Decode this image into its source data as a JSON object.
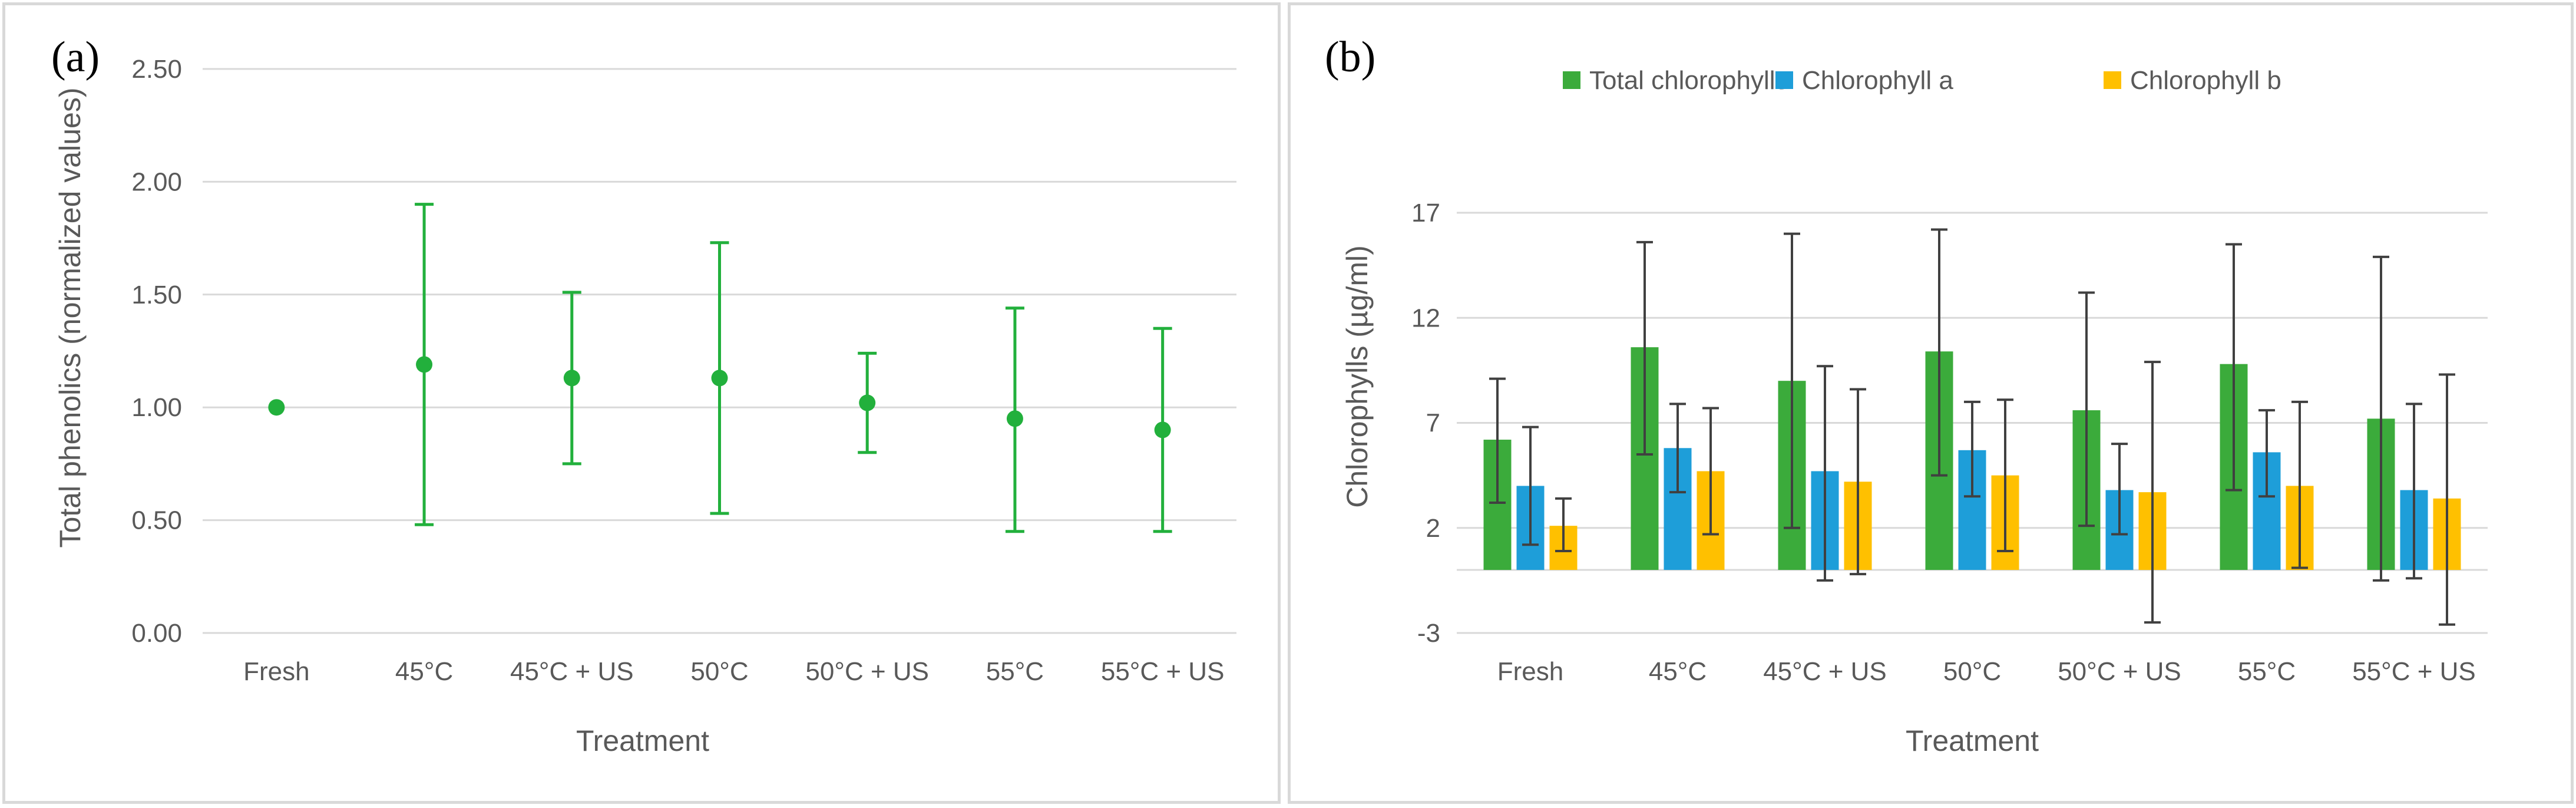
{
  "chart_data": [
    {
      "type": "scatter",
      "panel_label": "(a)",
      "title": "",
      "xlabel": "Treatment",
      "ylabel": "Total phenolics (normalized values)",
      "ylim": [
        0,
        2.5
      ],
      "yticks": [
        "0.00",
        "0.50",
        "1.00",
        "1.50",
        "2.00",
        "2.50"
      ],
      "categories": [
        "Fresh",
        "45°C",
        "45°C + US",
        "50°C",
        "50°C + US",
        "55°C",
        "55°C + US"
      ],
      "series": [
        {
          "name": "Total phenolics",
          "color": "#22b03c",
          "values": [
            1.0,
            1.19,
            1.13,
            1.13,
            1.02,
            0.95,
            0.9
          ],
          "error_low": [
            1.0,
            0.48,
            0.75,
            0.53,
            0.8,
            0.45,
            0.45
          ],
          "error_high": [
            1.0,
            1.9,
            1.51,
            1.73,
            1.24,
            1.44,
            1.35
          ]
        }
      ],
      "grid": true
    },
    {
      "type": "bar",
      "panel_label": "(b)",
      "title": "",
      "xlabel": "Treatment",
      "ylabel": "Chlorophylls (µg/ml)",
      "ylim": [
        -3,
        17
      ],
      "yticks": [
        "-3",
        "2",
        "7",
        "12",
        "17"
      ],
      "legend_position": "top",
      "categories": [
        "Fresh",
        "45°C",
        "45°C + US",
        "50°C",
        "50°C + US",
        "55°C",
        "55°C + US"
      ],
      "series": [
        {
          "name": "Total chlorophylls",
          "color": "#3bab3b",
          "values": [
            6.2,
            10.6,
            9.0,
            10.4,
            7.6,
            9.8,
            7.2
          ],
          "error_low": [
            3.2,
            5.5,
            2.0,
            4.5,
            2.1,
            3.8,
            -0.5
          ],
          "error_high": [
            9.1,
            15.6,
            16.0,
            16.2,
            13.2,
            15.5,
            14.9
          ]
        },
        {
          "name": "Chlorophyll a",
          "color": "#1e9ed9",
          "values": [
            4.0,
            5.8,
            4.7,
            5.7,
            3.8,
            5.6,
            3.8
          ],
          "error_low": [
            1.2,
            3.7,
            -0.5,
            3.5,
            1.7,
            3.5,
            -0.4
          ],
          "error_high": [
            6.8,
            7.9,
            9.7,
            8.0,
            6.0,
            7.6,
            7.9
          ]
        },
        {
          "name": "Chlorophyll b",
          "color": "#ffc000",
          "values": [
            2.1,
            4.7,
            4.2,
            4.5,
            3.7,
            4.0,
            3.4
          ],
          "error_low": [
            0.9,
            1.7,
            -0.2,
            0.9,
            -2.5,
            0.1,
            -2.6
          ],
          "error_high": [
            3.4,
            7.7,
            8.6,
            8.1,
            9.9,
            8.0,
            9.3
          ]
        }
      ],
      "grid": true
    }
  ]
}
